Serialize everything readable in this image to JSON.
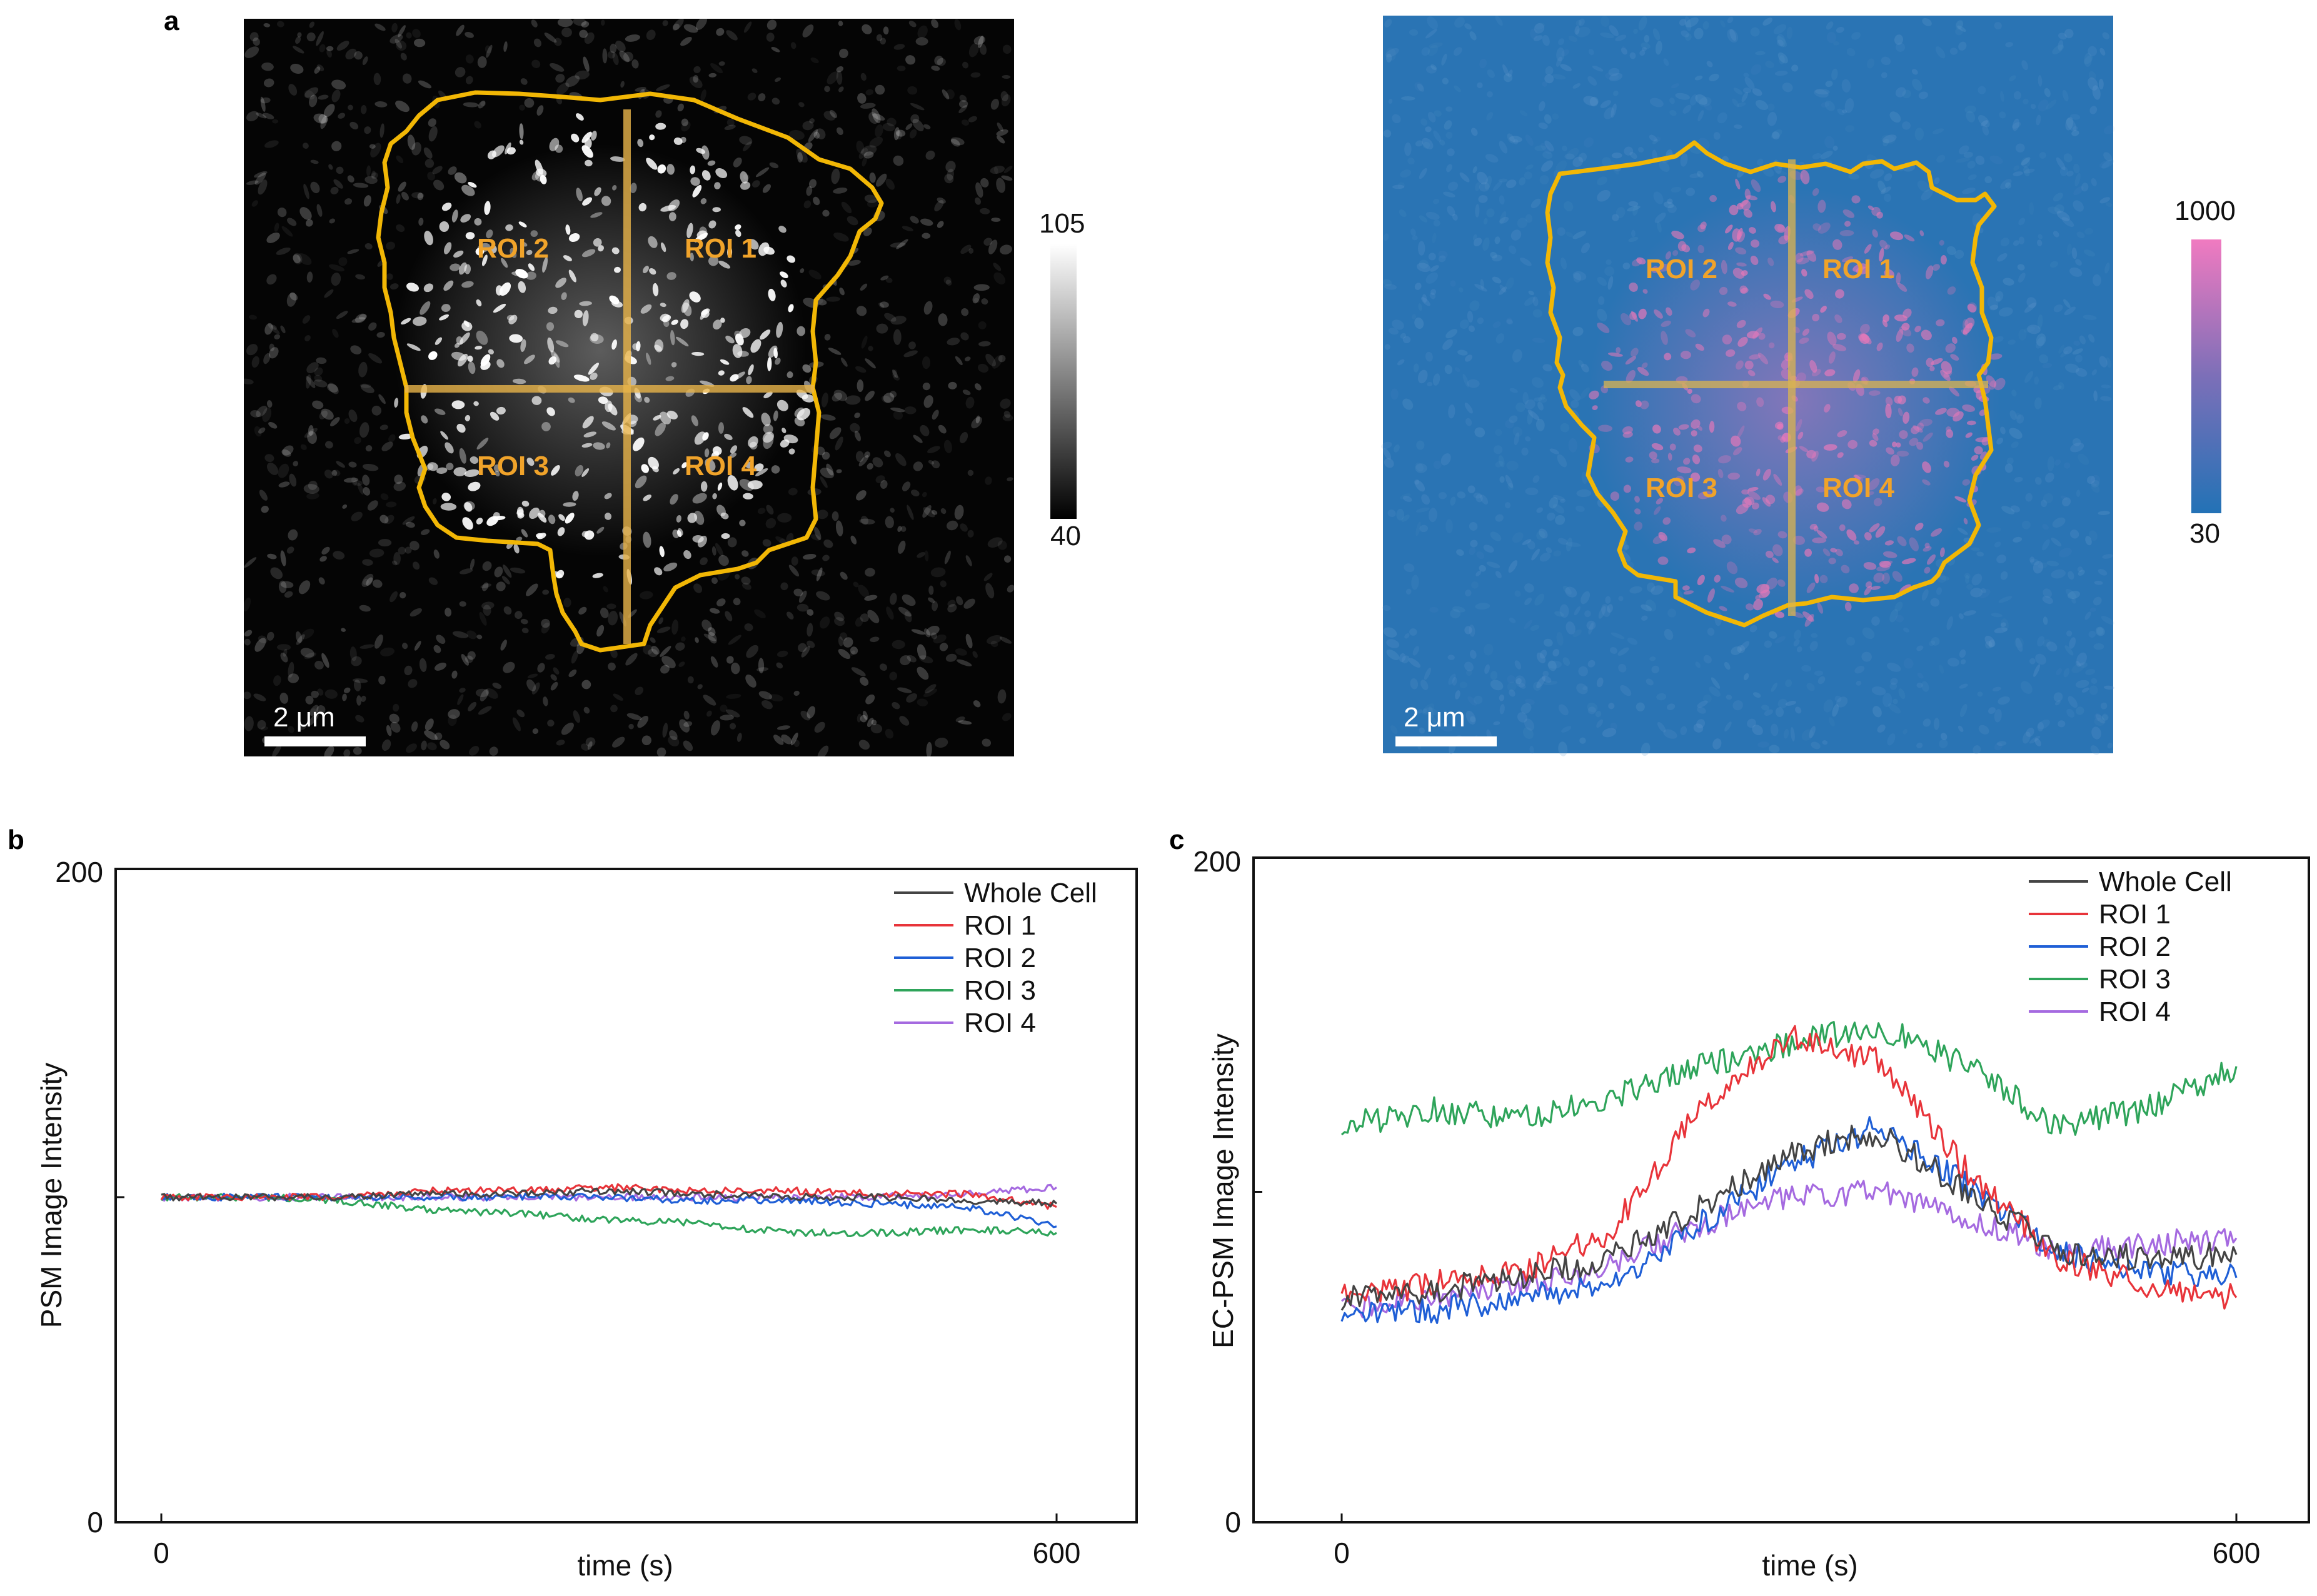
{
  "panels": {
    "a": "a",
    "b": "b",
    "c": "c"
  },
  "image_left": {
    "roi_labels": [
      "ROI 1",
      "ROI 2",
      "ROI 3",
      "ROI 4"
    ],
    "scale_bar": "2 μm",
    "colorbar": {
      "max": "105",
      "min": "40"
    }
  },
  "image_right": {
    "roi_labels": [
      "ROI 1",
      "ROI 2",
      "ROI 3",
      "ROI 4"
    ],
    "scale_bar": "2 μm",
    "colorbar": {
      "max": "1000",
      "min": "30"
    }
  },
  "colors": {
    "outline": "#f2b705",
    "roi_text": "#f0a32a",
    "whole_cell": "#444444",
    "roi1": "#e8343a",
    "roi2": "#1f5fd6",
    "roi3": "#2ea45a",
    "roi4": "#a56ae0",
    "right_bg": "#2a74b4",
    "right_pink": "#e678b8"
  },
  "chart_data": [
    {
      "type": "line",
      "panel": "b",
      "xlabel": "time (s)",
      "ylabel": "PSM Image Intensity",
      "xlim": [
        0,
        600
      ],
      "ylim": [
        0,
        200
      ],
      "xticks": [
        "0",
        "600"
      ],
      "yticks": [
        "0",
        "200"
      ],
      "legend": "top-right",
      "series": [
        {
          "name": "Whole Cell",
          "color_key": "whole_cell",
          "x": [
            0,
            60,
            120,
            180,
            240,
            300,
            360,
            420,
            480,
            540,
            600
          ],
          "values": [
            100,
            100,
            100,
            101,
            101,
            102,
            101,
            100,
            100,
            99,
            98
          ]
        },
        {
          "name": "ROI 1",
          "color_key": "roi1",
          "x": [
            0,
            60,
            120,
            180,
            240,
            300,
            360,
            420,
            480,
            540,
            600
          ],
          "values": [
            100,
            100,
            100,
            102,
            102,
            103,
            102,
            102,
            101,
            101,
            97
          ]
        },
        {
          "name": "ROI 2",
          "color_key": "roi2",
          "x": [
            0,
            60,
            120,
            180,
            240,
            300,
            360,
            420,
            480,
            540,
            600
          ],
          "values": [
            100,
            100,
            100,
            100,
            100,
            100,
            99,
            99,
            98,
            97,
            91
          ]
        },
        {
          "name": "ROI 3",
          "color_key": "roi3",
          "x": [
            0,
            60,
            120,
            180,
            240,
            300,
            360,
            420,
            480,
            540,
            600
          ],
          "values": [
            100,
            100,
            99,
            96,
            95,
            93,
            92,
            89,
            89,
            90,
            89
          ]
        },
        {
          "name": "ROI 4",
          "color_key": "roi4",
          "x": [
            0,
            60,
            120,
            180,
            240,
            300,
            360,
            420,
            480,
            540,
            600
          ],
          "values": [
            100,
            100,
            100,
            100,
            100,
            100,
            100,
            100,
            100,
            101,
            103
          ]
        }
      ]
    },
    {
      "type": "line",
      "panel": "c",
      "xlabel": "time (s)",
      "ylabel": "EC-PSM Image Intensity",
      "xlim": [
        0,
        600
      ],
      "ylim": [
        0,
        200
      ],
      "xticks": [
        "0",
        "600"
      ],
      "yticks": [
        "0",
        "200"
      ],
      "legend": "top-right",
      "series": [
        {
          "name": "Whole Cell",
          "color_key": "whole_cell",
          "x": [
            0,
            60,
            120,
            180,
            240,
            300,
            360,
            420,
            480,
            540,
            600
          ],
          "values": [
            68,
            70,
            74,
            80,
            95,
            112,
            118,
            100,
            82,
            80,
            81
          ]
        },
        {
          "name": "ROI 1",
          "color_key": "roi1",
          "x": [
            0,
            60,
            120,
            180,
            240,
            300,
            360,
            420,
            480,
            540,
            600
          ],
          "values": [
            68,
            72,
            76,
            88,
            125,
            147,
            140,
            106,
            80,
            72,
            68
          ]
        },
        {
          "name": "ROI 2",
          "color_key": "roi2",
          "x": [
            0,
            60,
            120,
            180,
            240,
            300,
            360,
            420,
            480,
            540,
            600
          ],
          "values": [
            62,
            64,
            68,
            72,
            90,
            108,
            120,
            102,
            82,
            76,
            74
          ]
        },
        {
          "name": "ROI 3",
          "color_key": "roi3",
          "x": [
            0,
            60,
            120,
            180,
            240,
            300,
            360,
            420,
            480,
            540,
            600
          ],
          "values": [
            120,
            125,
            122,
            128,
            138,
            145,
            150,
            138,
            120,
            125,
            138
          ]
        },
        {
          "name": "ROI 4",
          "color_key": "roi4",
          "x": [
            0,
            60,
            120,
            180,
            240,
            300,
            360,
            420,
            480,
            540,
            600
          ],
          "values": [
            65,
            68,
            72,
            78,
            90,
            98,
            100,
            92,
            82,
            84,
            86
          ]
        }
      ]
    }
  ]
}
